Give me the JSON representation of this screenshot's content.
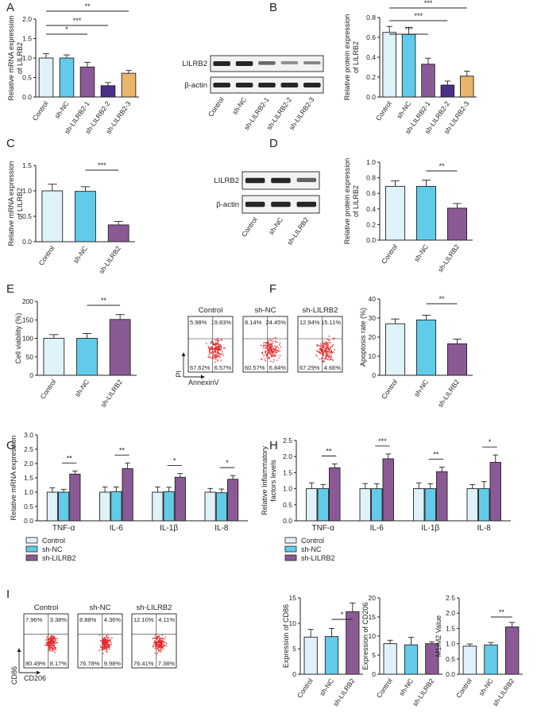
{
  "figure": {
    "colors": {
      "control": "#dff1f9",
      "shnc": "#62cbe9",
      "sh1": "#8b5a96",
      "sh2": "#4b2f8a",
      "sh3": "#e9b56c",
      "axis": "#222222",
      "band": "#1a1a1a",
      "bg": "#ffffff",
      "dot": "#e32a2a"
    },
    "panel_labels": [
      "A",
      "B",
      "C",
      "D",
      "E",
      "F",
      "G",
      "H",
      "I"
    ],
    "legend": [
      "Control",
      "sh-NC",
      "sh-LILRB2"
    ],
    "blots": [
      {
        "rows": [
          "LILRB2",
          "β-actin"
        ],
        "lanes": [
          "Control",
          "sh-NC",
          "sh-LILRB2-1",
          "sh-LILRB2-2",
          "sh-LILRB2-3"
        ]
      },
      {
        "rows": [
          "LILRB2",
          "β-actin"
        ],
        "lanes": [
          "Control",
          "sh-NC",
          "sh-LILRB2"
        ]
      }
    ],
    "flow_sets": [
      {
        "panel": "F",
        "x_axis": "AnnexinV",
        "y_axis": "PI",
        "plots": [
          {
            "title": "Control",
            "q": [
              "5.98%",
              "19.83%",
              "67.62%",
              "6.57%"
            ]
          },
          {
            "title": "sh-NC",
            "q": [
              "8.14%",
              "24.45%",
              "60.57%",
              "6.84%"
            ]
          },
          {
            "title": "sh-LILRB2",
            "q": [
              "12.94%",
              "15.11%",
              "67.29%",
              "4.66%"
            ]
          }
        ]
      },
      {
        "panel": "I",
        "x_axis": "CD206",
        "y_axis": "CD86",
        "plots": [
          {
            "title": "Control",
            "q": [
              "7.96%",
              "3.38%",
              "80.49%",
              "8.17%"
            ]
          },
          {
            "title": "sh-NC",
            "q": [
              "8.88%",
              "4.36%",
              "76.78%",
              "9.98%"
            ]
          },
          {
            "title": "sh-LILRB2",
            "q": [
              "12.10%",
              "4.11%",
              "76.41%",
              "7.38%"
            ]
          }
        ]
      }
    ]
  },
  "chart_data": [
    {
      "id": "A",
      "type": "bar",
      "ylabel": [
        "Relative mRNA expression",
        "of LILRB2"
      ],
      "categories": [
        "Control",
        "sh-NC",
        "sh-LILRB2-1",
        "sh-LILRB2-2",
        "sh-LILRB2-3"
      ],
      "values": [
        1.0,
        1.0,
        0.77,
        0.29,
        0.61
      ],
      "errors": [
        0.11,
        0.08,
        0.12,
        0.08,
        0.07
      ],
      "ylim": [
        0,
        2.0
      ],
      "ticks": [
        0.0,
        0.5,
        1.0,
        1.5,
        2.0
      ],
      "sig": [
        {
          "label": "*",
          "to": 2
        },
        {
          "label": "***",
          "to": 3
        },
        {
          "label": "**",
          "to": 4
        }
      ]
    },
    {
      "id": "B",
      "type": "bar",
      "ylabel": [
        "Relative protein expression",
        "of LILRB2"
      ],
      "categories": [
        "Control",
        "sh-NC",
        "sh-LILRB2-1",
        "sh-LILRB2-2",
        "sh-LILRB2-3"
      ],
      "values": [
        0.65,
        0.63,
        0.33,
        0.12,
        0.21
      ],
      "errors": [
        0.06,
        0.07,
        0.06,
        0.04,
        0.05
      ],
      "ylim": [
        0,
        0.8
      ],
      "ticks": [
        0.0,
        0.2,
        0.4,
        0.6,
        0.8
      ],
      "sig": [
        {
          "label": "***",
          "to": 2
        },
        {
          "label": "***",
          "to": 3
        },
        {
          "label": "***",
          "to": 4
        }
      ]
    },
    {
      "id": "C",
      "type": "bar",
      "ylabel": [
        "Relative mRNA expression",
        "of LILRB2"
      ],
      "categories": [
        "Control",
        "sh-NC",
        "sh-LILRB2"
      ],
      "values": [
        1.0,
        0.99,
        0.33
      ],
      "errors": [
        0.13,
        0.09,
        0.07
      ],
      "ylim": [
        0,
        1.5
      ],
      "ticks": [
        0.0,
        0.5,
        1.0,
        1.5
      ],
      "sig": [
        {
          "label": "***",
          "from": 1,
          "to": 2
        }
      ]
    },
    {
      "id": "D",
      "type": "bar",
      "ylabel": [
        "Relative protein expression",
        "of LILRB2"
      ],
      "categories": [
        "Control",
        "sh-NC",
        "sh-LILRB2"
      ],
      "values": [
        0.69,
        0.69,
        0.41
      ],
      "errors": [
        0.07,
        0.08,
        0.06
      ],
      "ylim": [
        0,
        1.0
      ],
      "ticks": [
        0.0,
        0.2,
        0.4,
        0.6,
        0.8,
        1.0
      ],
      "sig": [
        {
          "label": "**",
          "from": 1,
          "to": 2
        }
      ]
    },
    {
      "id": "E",
      "type": "bar",
      "ylabel": [
        "Cell viability (%)"
      ],
      "categories": [
        "Control",
        "sh-NC",
        "sh-LILRB2"
      ],
      "values": [
        100,
        100,
        151
      ],
      "errors": [
        10,
        13,
        13
      ],
      "ylim": [
        0,
        200
      ],
      "ticks": [
        0,
        50,
        100,
        150,
        200
      ],
      "sig": [
        {
          "label": "**",
          "from": 1,
          "to": 2
        }
      ]
    },
    {
      "id": "F",
      "type": "bar",
      "ylabel": [
        "Apoptosis rate (%)"
      ],
      "categories": [
        "Control",
        "sh-NC",
        "sh-LILRB2"
      ],
      "values": [
        27,
        29,
        16.5
      ],
      "errors": [
        2.5,
        2.5,
        2.5
      ],
      "ylim": [
        0,
        40
      ],
      "ticks": [
        0,
        10,
        20,
        30,
        40
      ],
      "sig": [
        {
          "label": "**",
          "from": 1,
          "to": 2
        }
      ]
    },
    {
      "id": "G",
      "type": "grouped-bar",
      "ylabel": [
        "Relative mRNA expression"
      ],
      "groups": [
        "TNF-α",
        "IL-6",
        "IL-1β",
        "IL-8"
      ],
      "series": [
        {
          "name": "Control",
          "values": [
            1.0,
            1.0,
            1.0,
            1.0
          ],
          "errors": [
            0.15,
            0.18,
            0.18,
            0.13
          ]
        },
        {
          "name": "sh-NC",
          "values": [
            1.0,
            1.02,
            1.02,
            0.98
          ],
          "errors": [
            0.1,
            0.16,
            0.15,
            0.13
          ]
        },
        {
          "name": "sh-LILRB2",
          "values": [
            1.63,
            1.82,
            1.52,
            1.45
          ],
          "errors": [
            0.11,
            0.2,
            0.13,
            0.13
          ]
        }
      ],
      "ylim": [
        0,
        3.0
      ],
      "ticks": [
        0.0,
        0.5,
        1.0,
        1.5,
        2.0,
        2.5,
        3.0
      ],
      "sig": [
        "**",
        "**",
        "*",
        "*"
      ]
    },
    {
      "id": "H",
      "type": "grouped-bar",
      "ylabel": [
        "Relative Inflammatory",
        "factors levels"
      ],
      "groups": [
        "TNF-α",
        "IL-6",
        "IL-1β",
        "IL-8"
      ],
      "series": [
        {
          "name": "Control",
          "values": [
            1.0,
            1.0,
            1.0,
            1.0
          ],
          "errors": [
            0.18,
            0.16,
            0.18,
            0.13
          ]
        },
        {
          "name": "sh-NC",
          "values": [
            1.0,
            1.0,
            1.0,
            1.0
          ],
          "errors": [
            0.13,
            0.15,
            0.15,
            0.22
          ]
        },
        {
          "name": "sh-LILRB2",
          "values": [
            1.65,
            1.93,
            1.53,
            1.82
          ],
          "errors": [
            0.12,
            0.15,
            0.14,
            0.23
          ]
        }
      ],
      "ylim": [
        0,
        2.5
      ],
      "ticks": [
        0.0,
        0.5,
        1.0,
        1.5,
        2.0,
        2.5
      ],
      "sig": [
        "**",
        "***",
        "**",
        "*"
      ]
    },
    {
      "id": "I1",
      "type": "bar",
      "ylabel": [
        "Expression of CD86"
      ],
      "categories": [
        "Control",
        "sh-NC",
        "sh-LILRB2"
      ],
      "values": [
        7.3,
        7.4,
        12.3
      ],
      "errors": [
        1.5,
        1.6,
        1.7
      ],
      "ylim": [
        0,
        15
      ],
      "ticks": [
        0,
        5,
        10,
        15
      ],
      "sig": [
        {
          "label": "*",
          "from": 1,
          "to": 2
        }
      ]
    },
    {
      "id": "I2",
      "type": "bar",
      "ylabel": [
        "Expression of CD206"
      ],
      "categories": [
        "Control",
        "sh-NC",
        "sh-LILRB2"
      ],
      "values": [
        8.0,
        7.7,
        8.0
      ],
      "errors": [
        0.9,
        2.0,
        0.5
      ],
      "ylim": [
        0,
        20
      ],
      "ticks": [
        0,
        5,
        10,
        15,
        20
      ],
      "sig": []
    },
    {
      "id": "I3",
      "type": "bar",
      "ylabel": [
        "M1/M2 Value"
      ],
      "categories": [
        "Control",
        "sh-NC",
        "sh-LILRB2"
      ],
      "values": [
        0.92,
        0.96,
        1.55
      ],
      "errors": [
        0.07,
        0.08,
        0.15
      ],
      "ylim": [
        0,
        2.5
      ],
      "ticks": [
        0.0,
        0.5,
        1.0,
        1.5,
        2.0,
        2.5
      ],
      "sig": [
        {
          "label": "**",
          "from": 1,
          "to": 2
        }
      ]
    }
  ]
}
